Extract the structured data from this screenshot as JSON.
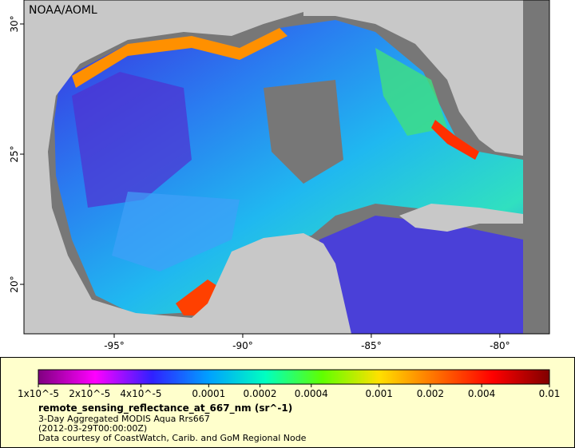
{
  "map": {
    "credit": "NOAA/AOML",
    "xlim": [
      -98.51,
      -78.07
    ],
    "ylim": [
      18.1,
      30.92
    ],
    "xticks": [
      {
        "value": -95,
        "label": "-95°"
      },
      {
        "value": -90,
        "label": "-90°"
      },
      {
        "value": -85,
        "label": "-85°"
      },
      {
        "value": -80,
        "label": "-80°"
      }
    ],
    "yticks": [
      {
        "value": 30,
        "label": "30°"
      },
      {
        "value": 25,
        "label": "25°"
      },
      {
        "value": 20,
        "label": "20°"
      }
    ]
  },
  "colorbar": {
    "scale": "log",
    "lim": [
      1e-05,
      0.01
    ],
    "colors": [
      "#800080",
      "#ff00ff",
      "#3020ff",
      "#00a0ff",
      "#00ffc0",
      "#60ff00",
      "#ffe000",
      "#ff7000",
      "#ff0000",
      "#800000"
    ],
    "ticks": [
      {
        "value": 1e-05,
        "label": "1x10^-5"
      },
      {
        "value": 2e-05,
        "label": "2x10^-5"
      },
      {
        "value": 4e-05,
        "label": "4x10^-5"
      },
      0.0001,
      0.0002,
      0.0004,
      0.001,
      0.002,
      0.004,
      0.01
    ]
  },
  "caption": {
    "variable": "remote_sensing_reflectance_at_667_nm (sr^-1)",
    "line1": "3-Day Aggregated MODIS Aqua Rrs667",
    "line2": "(2012-03-29T00:00:00Z)",
    "line3": "Data courtesy of CoastWatch, Carib. and GoM Regional Node"
  }
}
